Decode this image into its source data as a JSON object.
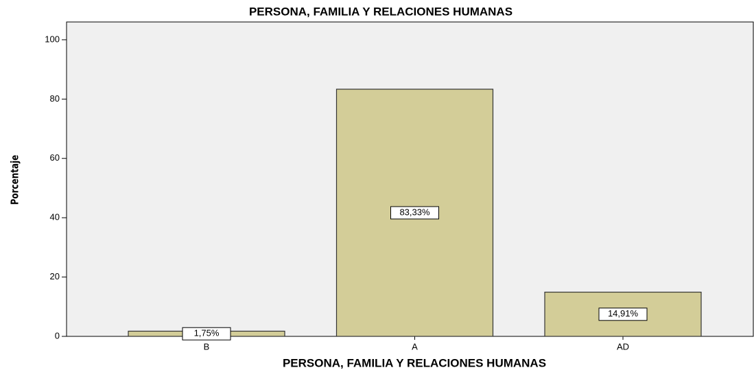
{
  "chart_data": {
    "type": "bar",
    "title": "PERSONA, FAMILIA Y RELACIONES HUMANAS",
    "x_label": "PERSONA, FAMILIA Y RELACIONES HUMANAS",
    "y_label": "Porcentaje",
    "categories": [
      "B",
      "A",
      "AD"
    ],
    "values": [
      1.75,
      83.33,
      14.91
    ],
    "value_labels": [
      "1,75%",
      "83,33%",
      "14,91%"
    ],
    "color": "#d3cd98",
    "ylim": [
      0,
      106
    ],
    "yticks": [
      0,
      20,
      40,
      60,
      80,
      100
    ],
    "grid": false
  }
}
